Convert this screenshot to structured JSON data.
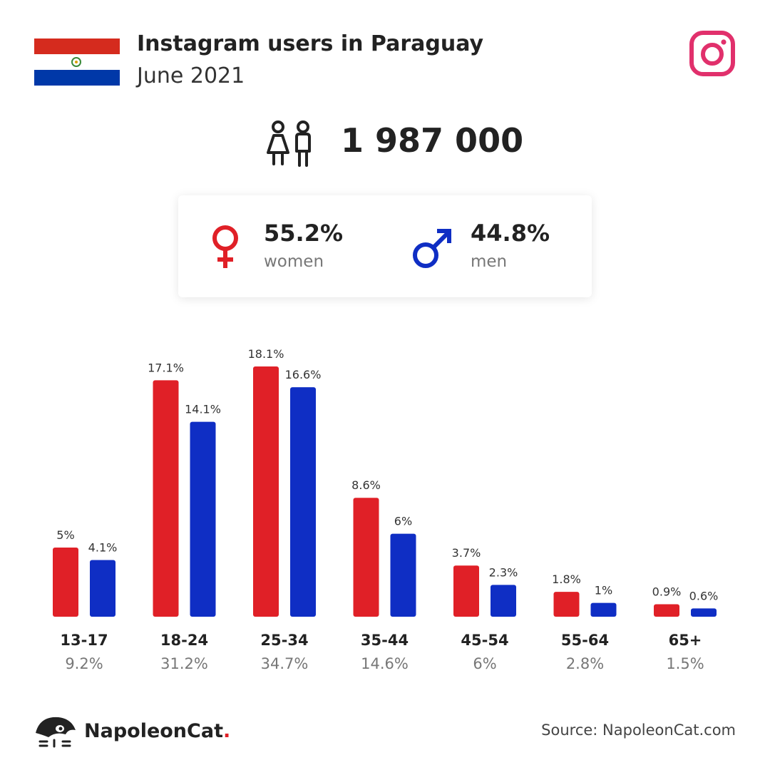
{
  "header": {
    "title": "Instagram users in Paraguay",
    "subtitle": "June 2021"
  },
  "total": {
    "value": "1 987 000",
    "icon": "people-icon"
  },
  "gender": {
    "women": {
      "percent": "55.2%",
      "label": "women",
      "color": "#e02027",
      "icon": "female-icon"
    },
    "men": {
      "percent": "44.8%",
      "label": "men",
      "color": "#0f2ec4",
      "icon": "male-icon"
    }
  },
  "colors": {
    "flag_red": "#d52b1e",
    "flag_blue": "#0038a8",
    "instagram": "#e1306c"
  },
  "chart_data": {
    "type": "bar",
    "categories": [
      "13-17",
      "18-24",
      "25-34",
      "35-44",
      "45-54",
      "55-64",
      "65+"
    ],
    "group_totals": [
      "9.2%",
      "31.2%",
      "34.7%",
      "14.6%",
      "6%",
      "2.8%",
      "1.5%"
    ],
    "series": [
      {
        "name": "women",
        "color": "#e02027",
        "values": [
          5,
          17.1,
          18.1,
          8.6,
          3.7,
          1.8,
          0.9
        ],
        "labels": [
          "5%",
          "17.1%",
          "18.1%",
          "8.6%",
          "3.7%",
          "1.8%",
          "0.9%"
        ]
      },
      {
        "name": "men",
        "color": "#0f2ec4",
        "values": [
          4.1,
          14.1,
          16.6,
          6,
          2.3,
          1,
          0.6
        ],
        "labels": [
          "4.1%",
          "14.1%",
          "16.6%",
          "6%",
          "2.3%",
          "1%",
          "0.6%"
        ]
      }
    ],
    "ylim": [
      0,
      18.1
    ],
    "grid": false
  },
  "footer": {
    "brand": "NapoleonCat",
    "brand_dot": ".",
    "source": "Source: NapoleonCat.com"
  }
}
